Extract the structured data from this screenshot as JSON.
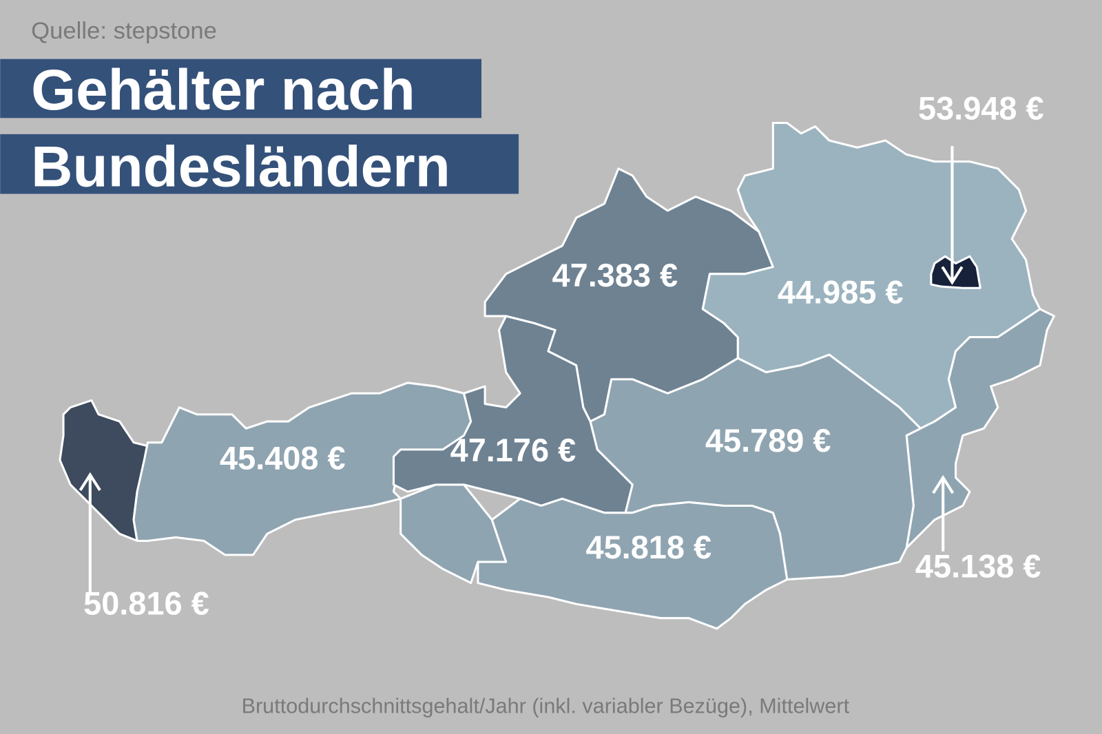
{
  "source": "Quelle: stepstone",
  "title": [
    "Gehälter nach",
    "Bundesländern"
  ],
  "regions": [
    {
      "label": "50.816 €",
      "fill": "#3e4b5e"
    },
    {
      "label": "45.408 €",
      "fill": "#8fa4b1"
    },
    {
      "label": "47.176 €",
      "fill": "#6e8292"
    },
    {
      "label": "47.383 €",
      "fill": "#6e8292"
    },
    {
      "label": "44.985 €",
      "fill": "#9bb3bf"
    },
    {
      "label": "53.948 €",
      "fill": "#17213a"
    },
    {
      "label": "45.138 €",
      "fill": "#8fa4b1"
    },
    {
      "label": "45.789 €",
      "fill": "#8fa4b1"
    },
    {
      "label": "45.818 €",
      "fill": "#8fa4b1"
    }
  ],
  "footnote": "Bruttodurchschnittsgehalt/Jahr (inkl. variabler Bezüge), Mittelwert"
}
